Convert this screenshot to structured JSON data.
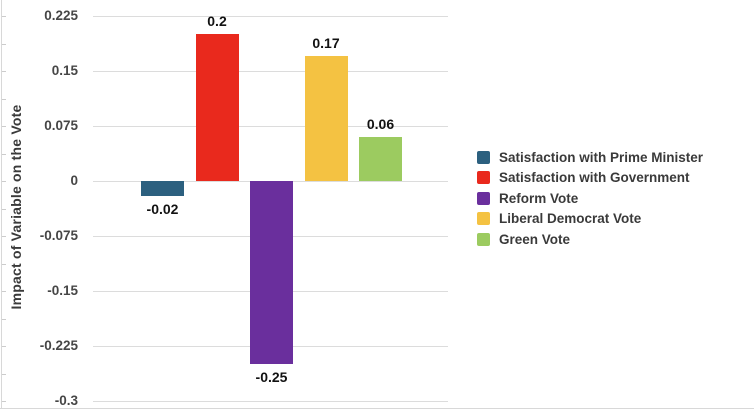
{
  "chart_data": {
    "type": "bar",
    "title": "",
    "xlabel": "",
    "ylabel": "Impact of Variable on the Vote",
    "ylim": [
      -0.3,
      0.225
    ],
    "yticks": [
      0.225,
      0.15,
      0.075,
      0,
      -0.075,
      -0.15,
      -0.225,
      -0.3
    ],
    "grid": true,
    "legend_position": "right",
    "categories": [
      "Satisfaction with Prime Minister",
      "Satisfaction with Government",
      "Reform Vote",
      "Liberal Democrat Vote",
      "Green Vote"
    ],
    "series": [
      {
        "name": "Satisfaction with Prime Minister",
        "value": -0.02,
        "data_label": "-0.02",
        "color": "#2c607f"
      },
      {
        "name": "Satisfaction with Government",
        "value": 0.2,
        "data_label": "0.2",
        "color": "#e9291d"
      },
      {
        "name": "Reform Vote",
        "value": -0.25,
        "data_label": "-0.25",
        "color": "#6a2f9d"
      },
      {
        "name": "Liberal Democrat Vote",
        "value": 0.17,
        "data_label": "0.17",
        "color": "#f4c242"
      },
      {
        "name": "Green Vote",
        "value": 0.06,
        "data_label": "0.06",
        "color": "#9ccb60"
      }
    ]
  },
  "colors": {
    "background": "#ffffff",
    "gridline": "#dcdcdc",
    "axis_frame": "#d8d8d8",
    "minor_tick": "#cccccc",
    "tick_label": "#464646",
    "value_label": "#121212",
    "legend_text": "#3a3a3a"
  }
}
